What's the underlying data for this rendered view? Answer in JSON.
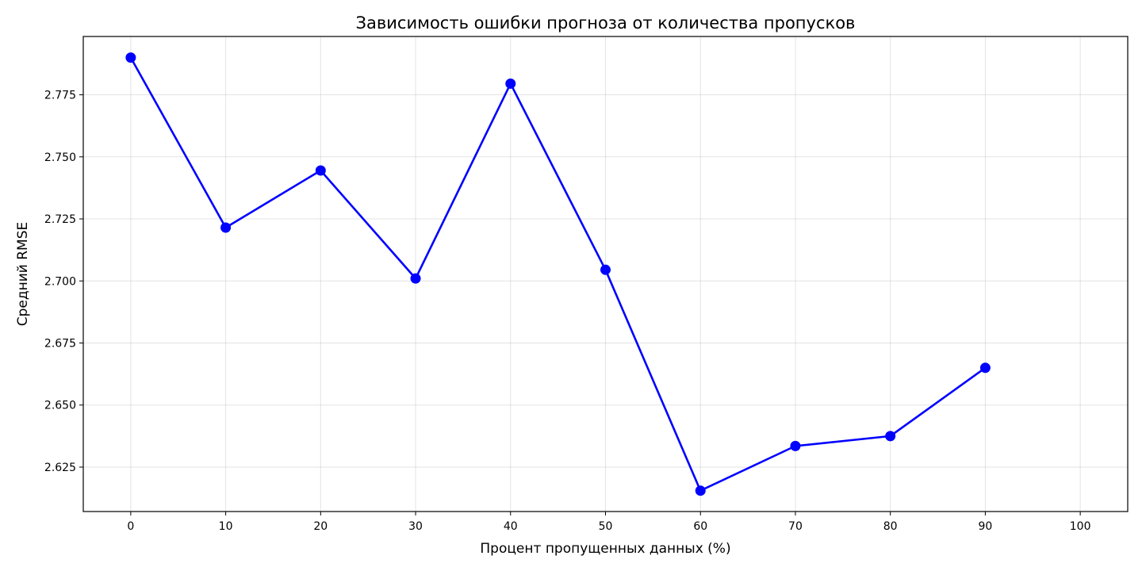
{
  "chart_data": {
    "type": "line",
    "title": "Зависимость ошибки прогноза от количества пропусков",
    "xlabel": "Процент пропущенных данных (%)",
    "ylabel": "Средний RMSE",
    "xlim": [
      -5,
      105
    ],
    "ylim": [
      2.6071,
      2.7985
    ],
    "x_ticks": [
      0,
      10,
      20,
      30,
      40,
      50,
      60,
      70,
      80,
      90,
      100
    ],
    "y_ticks": [
      2.625,
      2.65,
      2.675,
      2.7,
      2.725,
      2.75,
      2.775
    ],
    "y_tick_labels": [
      "2.625",
      "2.650",
      "2.675",
      "2.700",
      "2.725",
      "2.750",
      "2.775"
    ],
    "grid": true,
    "series": [
      {
        "color": "#0000ff",
        "marker": "circle",
        "x": [
          0,
          10,
          20,
          30,
          40,
          50,
          60,
          70,
          80,
          90
        ],
        "y": [
          2.79,
          2.7215,
          2.7445,
          2.701,
          2.7795,
          2.7045,
          2.6155,
          2.6335,
          2.6375,
          2.665
        ]
      }
    ]
  }
}
